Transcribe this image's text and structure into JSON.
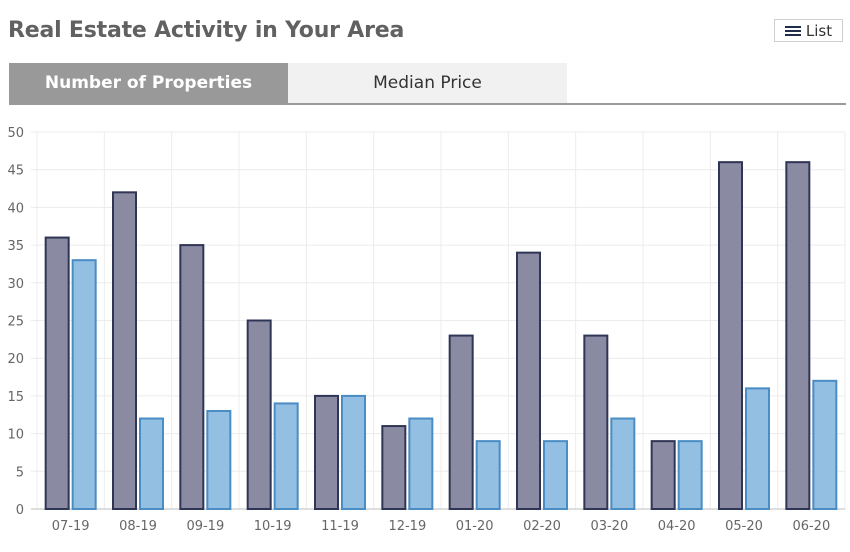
{
  "header": {
    "title": "Real Estate Activity in Your Area",
    "list_label": "List"
  },
  "tabs": [
    {
      "label": "Number of Properties",
      "active": true
    },
    {
      "label": "Median Price",
      "active": false
    }
  ],
  "colors": {
    "series_a_fill": "#8a8aa3",
    "series_a_stroke": "#2f3555",
    "series_b_fill": "#93bfe3",
    "series_b_stroke": "#4a8cc4",
    "grid": "#ececec",
    "axis_text": "#666666"
  },
  "chart_data": {
    "type": "bar",
    "categories": [
      "07-19",
      "08-19",
      "09-19",
      "10-19",
      "11-19",
      "12-19",
      "01-20",
      "02-20",
      "03-20",
      "04-20",
      "05-20",
      "06-20"
    ],
    "series": [
      {
        "values": [
          36,
          42,
          35,
          25,
          15,
          11,
          23,
          34,
          23,
          9,
          46,
          46
        ]
      },
      {
        "values": [
          33,
          12,
          13,
          14,
          15,
          12,
          9,
          9,
          12,
          9,
          16,
          17
        ]
      }
    ],
    "yticks": [
      0,
      5,
      10,
      15,
      20,
      25,
      30,
      35,
      40,
      45,
      50
    ],
    "ylim": [
      0,
      50
    ],
    "grid": true
  }
}
